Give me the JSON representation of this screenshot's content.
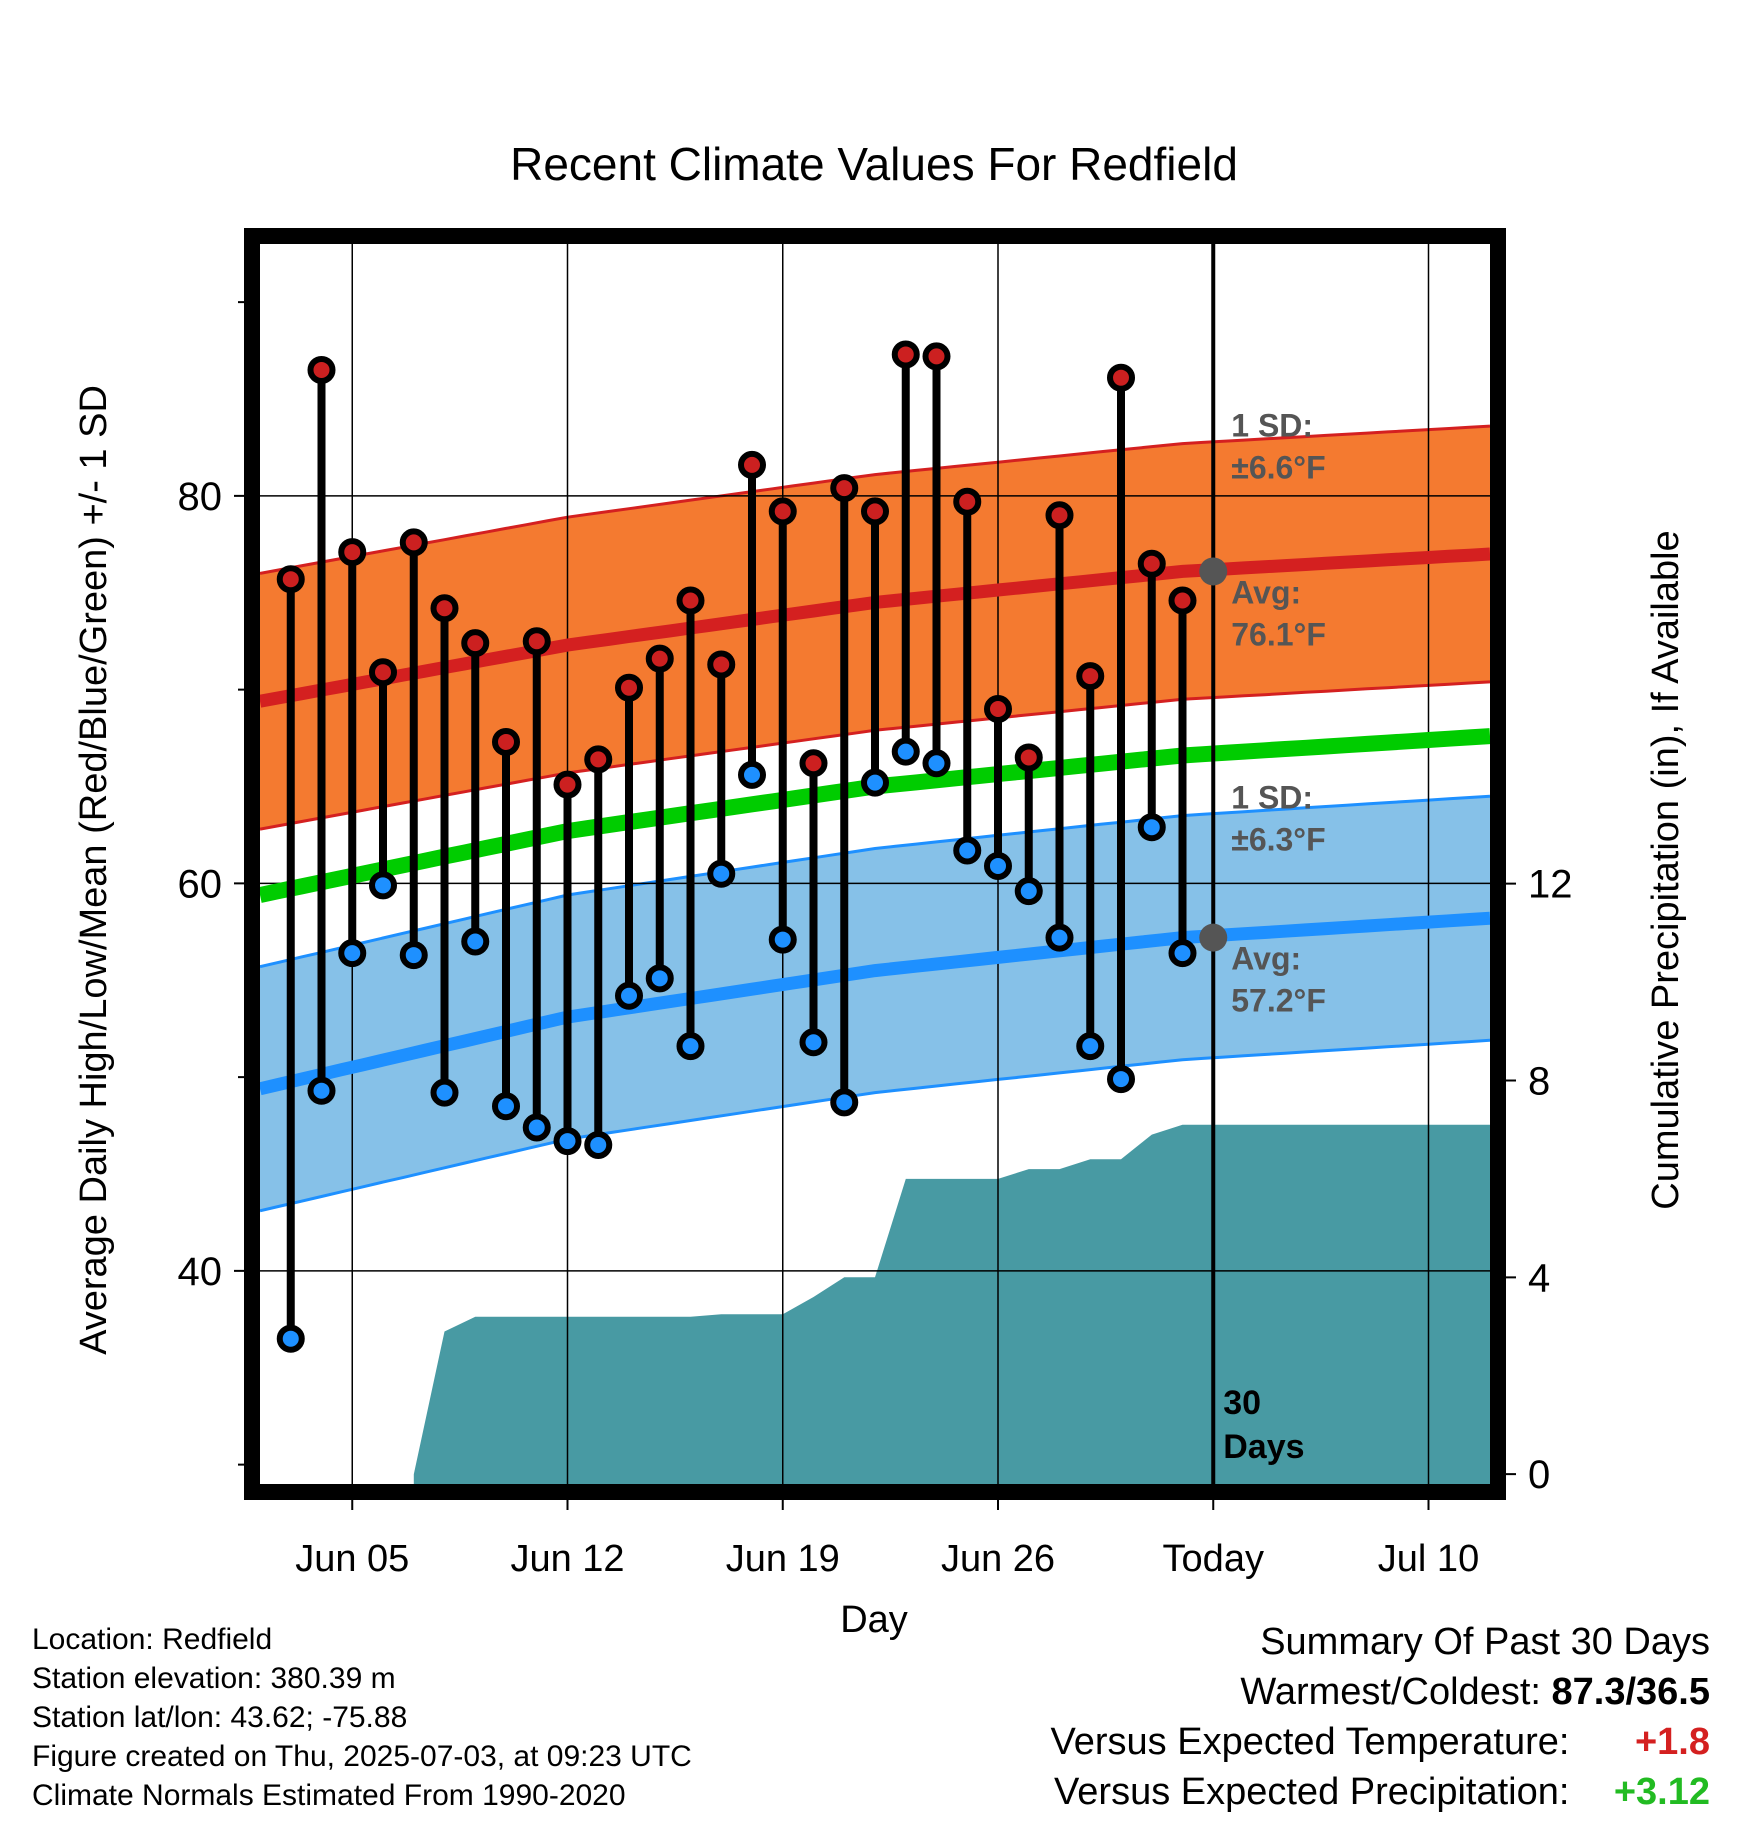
{
  "title": "Recent Climate Values For Redfield",
  "colors": {
    "high_band": "#f47a30",
    "high_line": "#d42020",
    "low_band": "#86c1e8",
    "low_line": "#1e90ff",
    "mean_line": "#00cc00",
    "precip_fill": "#489aa3",
    "high_dot": "#cc2020",
    "low_dot": "#1e90ff",
    "annotation": "#555555",
    "positive_temp": "#d42020",
    "positive_precip": "#22bb22"
  },
  "footer": {
    "location": "Location: Redfield",
    "elevation": "Station elevation: 380.39 m",
    "latlon": "Station lat/lon: 43.62; -75.88",
    "created": "Figure created on Thu, 2025-07-03, at 09:23 UTC",
    "normals": "Climate Normals Estimated From 1990-2020"
  },
  "summary": {
    "title": "Summary Of Past 30 Days",
    "warmest_label": "Warmest/Coldest:",
    "warmest_value": "87.3/36.5",
    "temp_label": "Versus Expected Temperature:",
    "temp_value": "+1.8",
    "precip_label": "Versus Expected Precipitation:",
    "precip_value": "+3.12"
  },
  "chart_data": {
    "type": "line",
    "title": "Recent Climate Values For Redfield",
    "xlabel": "Day",
    "ylabel": "Average Daily High/Low/Mean (Red/Blue/Green) +/- 1 SD",
    "y2label": "Cumulative Precipitation (in), If Available",
    "ylim": [
      29,
      93
    ],
    "y2lim": [
      -0.2,
      25
    ],
    "xlim": [
      "2025-06-02",
      "2025-07-12"
    ],
    "x_ticks": [
      {
        "date": "2025-06-05",
        "label": "Jun 05"
      },
      {
        "date": "2025-06-12",
        "label": "Jun 12"
      },
      {
        "date": "2025-06-19",
        "label": "Jun 19"
      },
      {
        "date": "2025-06-26",
        "label": "Jun 26"
      },
      {
        "date": "2025-07-03",
        "label": "Today"
      },
      {
        "date": "2025-07-10",
        "label": "Jul 10"
      }
    ],
    "y_ticks": [
      40,
      60,
      80
    ],
    "y_minor_ticks": [
      30,
      50,
      70,
      90
    ],
    "y2_ticks": [
      0,
      4,
      8,
      12
    ],
    "grid": true,
    "days": [
      "2025-06-03",
      "2025-06-04",
      "2025-06-05",
      "2025-06-06",
      "2025-06-07",
      "2025-06-08",
      "2025-06-09",
      "2025-06-10",
      "2025-06-11",
      "2025-06-12",
      "2025-06-13",
      "2025-06-14",
      "2025-06-15",
      "2025-06-16",
      "2025-06-17",
      "2025-06-18",
      "2025-06-19",
      "2025-06-20",
      "2025-06-21",
      "2025-06-22",
      "2025-06-23",
      "2025-06-24",
      "2025-06-25",
      "2025-06-26",
      "2025-06-27",
      "2025-06-28",
      "2025-06-29",
      "2025-06-30",
      "2025-07-01",
      "2025-07-02"
    ],
    "daily_high": [
      75.7,
      86.5,
      77.1,
      70.9,
      77.6,
      74.2,
      72.4,
      67.3,
      72.5,
      65.1,
      66.4,
      70.1,
      71.6,
      74.6,
      71.3,
      81.6,
      79.2,
      66.2,
      80.4,
      79.2,
      87.3,
      87.2,
      79.7,
      69.0,
      66.5,
      79.0,
      70.7,
      86.1,
      76.5,
      74.6
    ],
    "daily_low": [
      36.5,
      49.3,
      56.4,
      59.9,
      56.3,
      49.2,
      57.0,
      48.5,
      47.4,
      46.7,
      46.5,
      54.2,
      55.1,
      51.6,
      60.5,
      65.6,
      57.1,
      51.8,
      48.7,
      65.2,
      66.8,
      66.2,
      61.7,
      60.9,
      59.6,
      57.2,
      51.6,
      49.9,
      62.9,
      56.4
    ],
    "normal_dates": [
      "2025-06-02",
      "2025-06-12",
      "2025-06-22",
      "2025-07-02",
      "2025-07-12"
    ],
    "normal_high": [
      69.4,
      72.3,
      74.5,
      76.1,
      77.0
    ],
    "normal_high_sd": 6.6,
    "normal_low": [
      49.4,
      53.1,
      55.5,
      57.2,
      58.2
    ],
    "normal_low_sd": 6.3,
    "normal_mean": [
      59.4,
      62.7,
      65.0,
      66.6,
      67.6
    ],
    "precip_dates": [
      "2025-06-07",
      "2025-06-08",
      "2025-06-09",
      "2025-06-10",
      "2025-06-11",
      "2025-06-12",
      "2025-06-13",
      "2025-06-14",
      "2025-06-15",
      "2025-06-16",
      "2025-06-17",
      "2025-06-18",
      "2025-06-19",
      "2025-06-20",
      "2025-06-21",
      "2025-06-22",
      "2025-06-23",
      "2025-06-24",
      "2025-06-25",
      "2025-06-26",
      "2025-06-27",
      "2025-06-28",
      "2025-06-29",
      "2025-06-30",
      "2025-07-01",
      "2025-07-02",
      "2025-07-03",
      "2025-07-12"
    ],
    "precip_cumulative": [
      0.0,
      2.9,
      3.2,
      3.2,
      3.2,
      3.2,
      3.2,
      3.2,
      3.2,
      3.2,
      3.25,
      3.25,
      3.25,
      3.6,
      4.0,
      4.0,
      6.0,
      6.0,
      6.0,
      6.0,
      6.2,
      6.2,
      6.4,
      6.4,
      6.9,
      7.1,
      7.1,
      7.1
    ],
    "today_label": "30 Days",
    "annotations": {
      "high_sd": "1 SD:",
      "high_sd_value": "±6.6°F",
      "high_avg": "Avg:",
      "high_avg_value": "76.1°F",
      "low_sd": "1 SD:",
      "low_sd_value": "±6.3°F",
      "low_avg": "Avg:",
      "low_avg_value": "57.2°F",
      "today_high": 76.1,
      "today_low": 57.2
    }
  }
}
